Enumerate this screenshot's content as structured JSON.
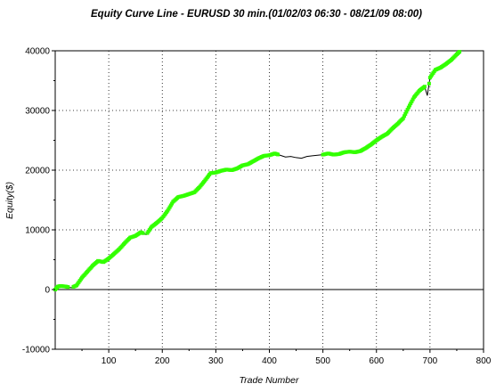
{
  "chart_data": {
    "type": "line",
    "title": "Equity Curve Line - EURUSD 30 min.(01/02/03 06:30 - 08/21/09 08:00)",
    "xlabel": "Trade Number",
    "ylabel": "Equity($)",
    "xlim": [
      0,
      800
    ],
    "ylim": [
      -10000,
      40000
    ],
    "x_ticks": [
      100,
      200,
      300,
      400,
      500,
      600,
      700,
      800
    ],
    "y_ticks": [
      -10000,
      0,
      10000,
      20000,
      30000,
      40000
    ],
    "x_tick_labels": [
      "100",
      "200",
      "300",
      "400",
      "500",
      "600",
      "700",
      "800"
    ],
    "y_tick_labels": [
      "-10000",
      "0",
      "10000",
      "20000",
      "30000",
      "40000"
    ],
    "grid": true,
    "colors": {
      "equity_line": "#000000",
      "new_high_markers": "#33ff00",
      "zero_line": "#000000"
    },
    "series": [
      {
        "x": [
          0,
          5,
          10,
          20,
          30,
          40,
          50,
          60,
          70,
          80,
          90,
          100,
          110,
          120,
          130,
          140,
          150,
          160,
          170,
          180,
          190,
          200,
          210,
          220,
          230,
          240,
          250,
          260,
          270,
          280,
          290,
          300,
          310,
          320,
          330,
          340,
          350,
          360,
          370,
          380,
          390,
          400,
          410,
          420,
          430,
          440,
          450,
          460,
          470,
          480,
          490,
          500,
          510,
          520,
          530,
          540,
          550,
          560,
          570,
          580,
          590,
          600,
          610,
          620,
          630,
          640,
          650,
          660,
          670,
          680,
          690,
          695,
          700,
          710,
          720,
          730,
          740,
          750,
          757
        ],
        "y": [
          0,
          500,
          600,
          500,
          300,
          700,
          2000,
          3000,
          4000,
          4800,
          4600,
          5200,
          6000,
          6800,
          7800,
          8700,
          9000,
          9600,
          9200,
          10500,
          11200,
          12000,
          13200,
          14700,
          15500,
          15700,
          16000,
          16300,
          17200,
          18300,
          19500,
          19600,
          19900,
          20100,
          20000,
          20300,
          20800,
          21000,
          21500,
          22000,
          22400,
          22500,
          22800,
          22500,
          22200,
          22300,
          22100,
          22000,
          22300,
          22400,
          22500,
          22600,
          22800,
          22600,
          22700,
          23000,
          23100,
          23000,
          23200,
          23700,
          24300,
          25000,
          25600,
          26100,
          27000,
          27800,
          28700,
          30500,
          32200,
          33300,
          34000,
          32500,
          35500,
          36800,
          37200,
          37800,
          38500,
          39400,
          40000
        ]
      }
    ]
  }
}
